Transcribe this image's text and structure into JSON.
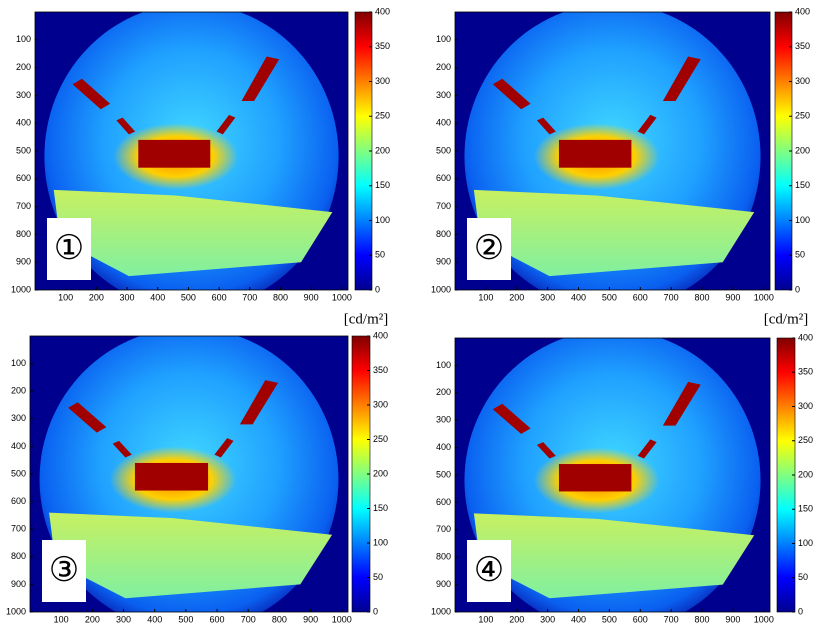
{
  "chart_data": [
    {
      "type": "heatmap",
      "label": "①",
      "unit": "[cd/m²]",
      "colormap": "jet",
      "xlim": [
        0,
        1020
      ],
      "xticks": [
        100,
        200,
        300,
        400,
        500,
        600,
        700,
        800,
        900,
        1000
      ],
      "ylim": [
        0,
        1000
      ],
      "yticks": [
        100,
        200,
        300,
        400,
        500,
        600,
        700,
        800,
        900,
        1000
      ],
      "clim": [
        0,
        400
      ],
      "cticks": [
        0,
        50,
        100,
        150,
        200,
        250,
        300,
        350,
        400
      ]
    },
    {
      "type": "heatmap",
      "label": "②",
      "unit": "[cd/m²]",
      "colormap": "jet",
      "xlim": [
        0,
        1020
      ],
      "xticks": [
        100,
        200,
        300,
        400,
        500,
        600,
        700,
        800,
        900,
        1000
      ],
      "ylim": [
        0,
        1000
      ],
      "yticks": [
        100,
        200,
        300,
        400,
        500,
        600,
        700,
        800,
        900,
        1000
      ],
      "clim": [
        0,
        400
      ],
      "cticks": [
        0,
        50,
        100,
        150,
        200,
        250,
        300,
        350,
        400
      ]
    },
    {
      "type": "heatmap",
      "label": "③",
      "colormap": "jet",
      "xlim": [
        0,
        1020
      ],
      "xticks": [
        100,
        200,
        300,
        400,
        500,
        600,
        700,
        800,
        900,
        1000
      ],
      "ylim": [
        0,
        1000
      ],
      "yticks": [
        100,
        200,
        300,
        400,
        500,
        600,
        700,
        800,
        900,
        1000
      ],
      "clim": [
        0,
        400
      ],
      "cticks": [
        0,
        50,
        100,
        150,
        200,
        250,
        300,
        350,
        400
      ]
    },
    {
      "type": "heatmap",
      "label": "④",
      "colormap": "jet",
      "xlim": [
        0,
        1020
      ],
      "xticks": [
        100,
        200,
        300,
        400,
        500,
        600,
        700,
        800,
        900,
        1000
      ],
      "ylim": [
        0,
        1000
      ],
      "yticks": [
        100,
        200,
        300,
        400,
        500,
        600,
        700,
        800,
        900,
        1000
      ],
      "clim": [
        0,
        400
      ],
      "cticks": [
        0,
        50,
        100,
        150,
        200,
        250,
        300,
        350,
        400
      ]
    }
  ]
}
